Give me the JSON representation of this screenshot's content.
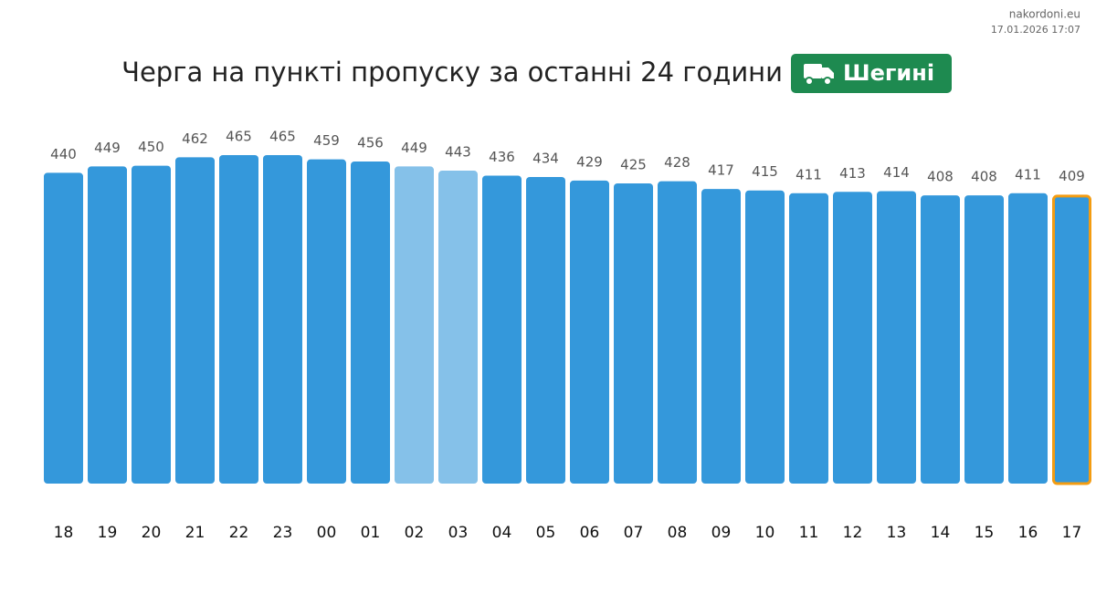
{
  "chart_data": {
    "type": "bar",
    "title": "Черга на пункті пропуску за останні 24 години",
    "badge": "Шегині",
    "source": "nakordoni.eu",
    "timestamp": "17.01.2026 17:07",
    "categories": [
      "18",
      "19",
      "20",
      "21",
      "22",
      "23",
      "00",
      "01",
      "02",
      "03",
      "04",
      "05",
      "06",
      "07",
      "08",
      "09",
      "10",
      "11",
      "12",
      "13",
      "14",
      "15",
      "16",
      "17"
    ],
    "values": [
      440,
      449,
      450,
      462,
      465,
      465,
      459,
      456,
      449,
      443,
      436,
      434,
      429,
      425,
      428,
      417,
      415,
      411,
      413,
      414,
      408,
      408,
      411,
      409
    ],
    "colors": [
      "#3498db",
      "#3498db",
      "#3498db",
      "#3498db",
      "#3498db",
      "#3498db",
      "#3498db",
      "#3498db",
      "#85c1e9",
      "#85c1e9",
      "#3498db",
      "#3498db",
      "#3498db",
      "#3498db",
      "#3498db",
      "#3498db",
      "#3498db",
      "#3498db",
      "#3498db",
      "#3498db",
      "#3498db",
      "#3498db",
      "#3498db",
      "#3498db"
    ],
    "border_colors": [
      null,
      null,
      null,
      null,
      null,
      null,
      null,
      null,
      null,
      null,
      null,
      null,
      null,
      null,
      null,
      null,
      null,
      null,
      null,
      null,
      null,
      null,
      null,
      "#f39c12"
    ]
  }
}
